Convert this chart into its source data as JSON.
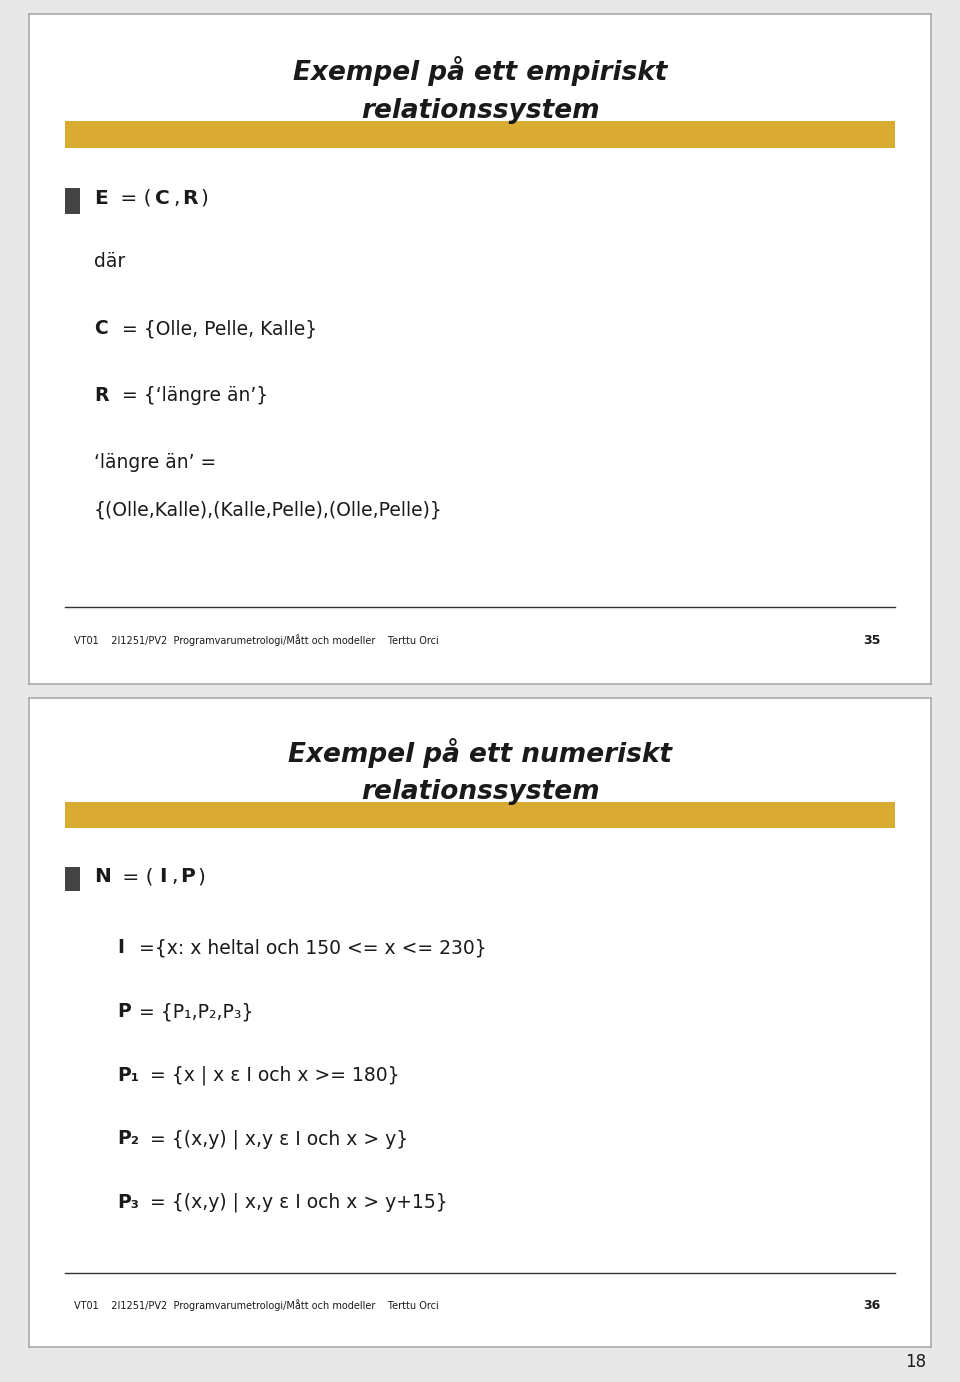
{
  "bg_color": "#e8e8e8",
  "slide_bg": "#ffffff",
  "slide_border": "#aaaaaa",
  "highlight_color": "#D4A017",
  "text_color": "#1a1a1a",
  "bullet_color": "#444444",
  "slide1": {
    "title_line1": "Exempel på ett empiriskt",
    "title_line2": "relationssystem",
    "footer": "VT01    2I1251/PV2  Programvarumetrologi/Mått och modeller    Terttu Orci",
    "page_num": "35"
  },
  "slide2": {
    "title_line1": "Exempel på ett numeriskt",
    "title_line2": "relationssystem",
    "footer": "VT01    2I1251/PV2  Programvarumetrologi/Mått och modeller    Terttu Orci",
    "page_num": "36"
  },
  "page_number": "18"
}
